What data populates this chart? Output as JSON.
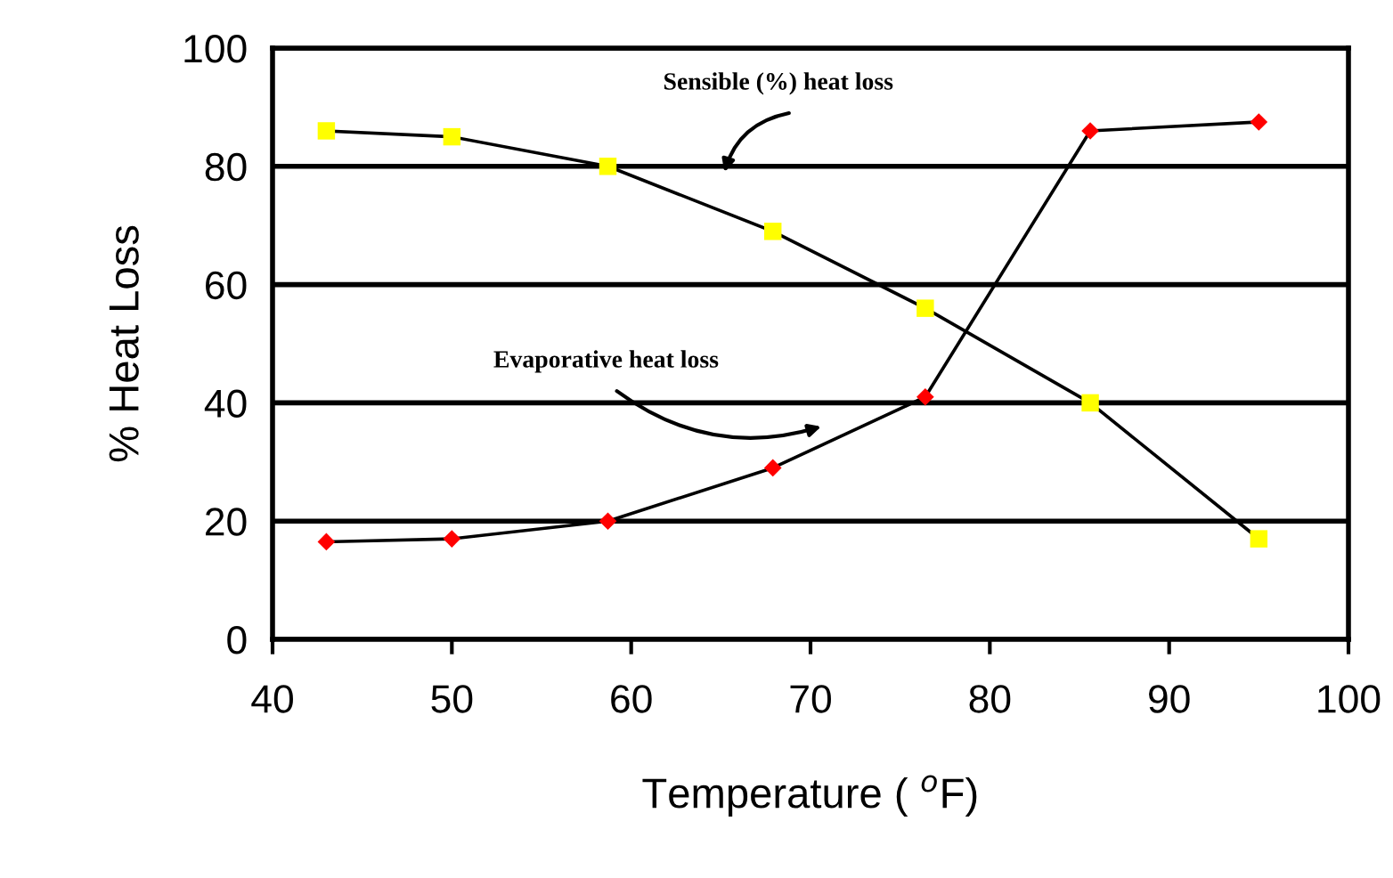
{
  "chart_data": {
    "type": "line",
    "xlabel": "Temperature ( $^{o}$F)",
    "ylabel": "% Heat Loss",
    "xlim": [
      40,
      100
    ],
    "xticks": [
      40,
      50,
      60,
      70,
      80,
      90,
      100
    ],
    "ylim": [
      0,
      100
    ],
    "yticks": [
      0,
      20,
      40,
      60,
      80,
      100
    ],
    "grid": "y",
    "legend": false,
    "series": [
      {
        "color": "#ffff00",
        "marker": "square",
        "x": [
          43,
          50,
          58.7,
          67.9,
          76.4,
          85.6,
          95
        ],
        "values": [
          86,
          85,
          80,
          69,
          56,
          40,
          17
        ]
      },
      {
        "color": "#ff0000",
        "marker": "diamond",
        "x": [
          43,
          50,
          58.7,
          67.9,
          76.4,
          85.6,
          95
        ],
        "values": [
          16.5,
          17,
          20,
          29,
          41,
          86,
          87.5
        ]
      }
    ],
    "annotations": [
      "Sensible (%) heat loss",
      "Evaporative heat loss"
    ]
  }
}
